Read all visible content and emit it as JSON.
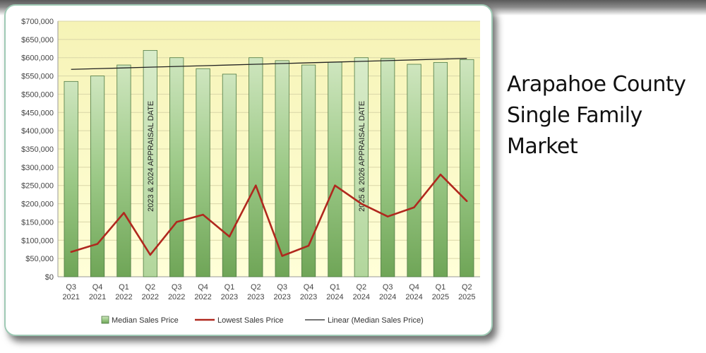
{
  "page_title_lines": [
    "Arapahoe County",
    "Single Family",
    "Market"
  ],
  "chart_data": {
    "type": "bar",
    "categories": [
      [
        "Q3",
        "2021"
      ],
      [
        "Q4",
        "2021"
      ],
      [
        "Q1",
        "2022"
      ],
      [
        "Q2",
        "2022"
      ],
      [
        "Q3",
        "2022"
      ],
      [
        "Q4",
        "2022"
      ],
      [
        "Q1",
        "2023"
      ],
      [
        "Q2",
        "2023"
      ],
      [
        "Q3",
        "2023"
      ],
      [
        "Q4",
        "2023"
      ],
      [
        "Q1",
        "2024"
      ],
      [
        "Q2",
        "2024"
      ],
      [
        "Q3",
        "2024"
      ],
      [
        "Q4",
        "2024"
      ],
      [
        "Q1",
        "2025"
      ],
      [
        "Q2",
        "2025"
      ]
    ],
    "series": [
      {
        "name": "Median Sales Price",
        "type": "bar",
        "color": "#8fc27a",
        "values": [
          535000,
          550000,
          580000,
          620000,
          600000,
          570000,
          555000,
          600000,
          592000,
          580000,
          588000,
          600000,
          598000,
          582000,
          587000,
          595000
        ]
      },
      {
        "name": "Lowest Sales Price",
        "type": "line",
        "color": "#b0281e",
        "values": [
          68000,
          90000,
          175000,
          60000,
          150000,
          170000,
          110000,
          250000,
          57000,
          85000,
          250000,
          200000,
          165000,
          190000,
          280000,
          207000
        ]
      },
      {
        "name": "Linear (Median Sales Price)",
        "type": "trendline",
        "color": "#222222",
        "values": [
          568000,
          570000,
          572000,
          574000,
          576000,
          578000,
          580000,
          582000,
          584000,
          586000,
          588000,
          590000,
          592000,
          594000,
          596000,
          598000
        ]
      }
    ],
    "highlight_indices": [
      3,
      11
    ],
    "highlight_color": "#c2dfae",
    "annotations": [
      {
        "index": 3,
        "text": "2023 & 2024 APPRAISAL DATE"
      },
      {
        "index": 11,
        "text": "2025 & 2026 APPRAISAL DATE"
      }
    ],
    "ylim": [
      0,
      700000
    ],
    "ytick_step": 50000,
    "ytick_prefix": "$",
    "grid": true,
    "legend_position": "bottom",
    "plot_background": [
      "#f6f3b6",
      "#ffffd8"
    ]
  }
}
